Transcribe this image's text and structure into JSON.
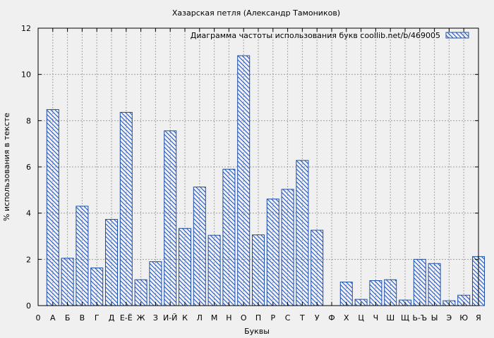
{
  "chart_data": {
    "type": "bar",
    "title": "Хазарская петля (Александр Тамоников)",
    "xlabel": "Буквы",
    "ylabel": "% использования в тексте",
    "legend": {
      "label": "Диаграмма частоты использования букв  coollib.net/b/469005",
      "position": "top-right"
    },
    "ylim": [
      0,
      12
    ],
    "yticks": [
      "0",
      "2",
      "4",
      "6",
      "8",
      "10",
      "12"
    ],
    "x_tick_labels": [
      "0",
      "А",
      "Б",
      "В",
      "Г",
      "Д",
      "Е-Ё",
      "Ж",
      "З",
      "И-Й",
      "К",
      "Л",
      "М",
      "Н",
      "О",
      "П",
      "Р",
      "С",
      "Т",
      "У",
      "Ф",
      "Х",
      "Ц",
      "Ч",
      "Ш",
      "Щ",
      "Ь-Ъ",
      "Ы",
      "Э",
      "Ю",
      "Я"
    ],
    "categories": [
      "А",
      "Б",
      "В",
      "Г",
      "Д",
      "Е-Ё",
      "Ж",
      "З",
      "И-Й",
      "К",
      "Л",
      "М",
      "Н",
      "О",
      "П",
      "Р",
      "С",
      "Т",
      "У",
      "Ф",
      "Х",
      "Ц",
      "Ч",
      "Ш",
      "Щ",
      "Ь-Ъ",
      "Ы",
      "Э",
      "Ю",
      "Я"
    ],
    "values": [
      8.48,
      2.05,
      4.3,
      1.63,
      3.73,
      8.36,
      1.12,
      1.9,
      7.56,
      3.34,
      5.13,
      3.04,
      5.9,
      10.81,
      3.06,
      4.61,
      5.03,
      6.28,
      3.26,
      0.0,
      1.02,
      0.27,
      1.08,
      1.12,
      0.24,
      2.0,
      1.82,
      0.21,
      0.45,
      2.12
    ],
    "grid": true,
    "colors": {
      "bar_stroke": "#1f4fa8",
      "background": "#f0f0f0",
      "grid": "#a0a0a0"
    }
  }
}
